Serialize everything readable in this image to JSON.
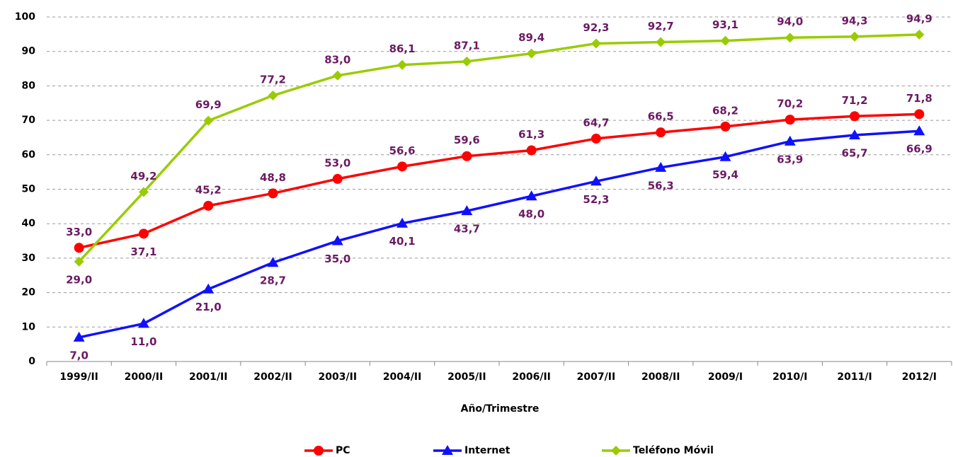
{
  "chart_data": {
    "type": "line",
    "x_label": "Año/Trimestre",
    "categories": [
      "1999/II",
      "2000/II",
      "2001/II",
      "2002/II",
      "2003/II",
      "2004/II",
      "2005/II",
      "2006/II",
      "2007/II",
      "2008/II",
      "2009/I",
      "2010/I",
      "2011/I",
      "2012/I"
    ],
    "series": [
      {
        "name": "PC",
        "color": "#ff0000",
        "marker": "circle",
        "values": [
          33.0,
          37.1,
          45.2,
          48.8,
          53.0,
          56.6,
          59.6,
          61.3,
          64.7,
          66.5,
          68.2,
          70.2,
          71.2,
          71.8
        ],
        "value_labels": [
          "33,0",
          "37,1",
          "45,2",
          "48,8",
          "53,0",
          "56,6",
          "59,6",
          "61,3",
          "64,7",
          "66,5",
          "68,2",
          "70,2",
          "71,2",
          "71,8"
        ]
      },
      {
        "name": "Internet",
        "color": "#1010ff",
        "marker": "triangle",
        "values": [
          7.0,
          11.0,
          21.0,
          28.7,
          35.0,
          40.1,
          43.7,
          48.0,
          52.3,
          56.3,
          59.4,
          63.9,
          65.7,
          66.9
        ],
        "value_labels": [
          "7,0",
          "11,0",
          "21,0",
          "28,7",
          "35,0",
          "40,1",
          "43,7",
          "48,0",
          "52,3",
          "56,3",
          "59,4",
          "63,9",
          "65,7",
          "66,9"
        ]
      },
      {
        "name": "Teléfono Móvil",
        "color": "#99cc00",
        "marker": "diamond",
        "values": [
          29.0,
          49.2,
          69.9,
          77.2,
          83.0,
          86.1,
          87.1,
          89.4,
          92.3,
          92.7,
          93.1,
          94.0,
          94.3,
          94.9
        ],
        "value_labels": [
          "29,0",
          "49,2",
          "69,9",
          "77,2",
          "83,0",
          "86,1",
          "87,1",
          "89,4",
          "92,3",
          "92,7",
          "93,1",
          "94,0",
          "94,3",
          "94,9"
        ]
      }
    ],
    "ylim": [
      0,
      100
    ],
    "yticks": [
      0,
      10,
      20,
      30,
      40,
      50,
      60,
      70,
      80,
      90,
      100
    ],
    "grid": true,
    "legend": "bottom"
  }
}
